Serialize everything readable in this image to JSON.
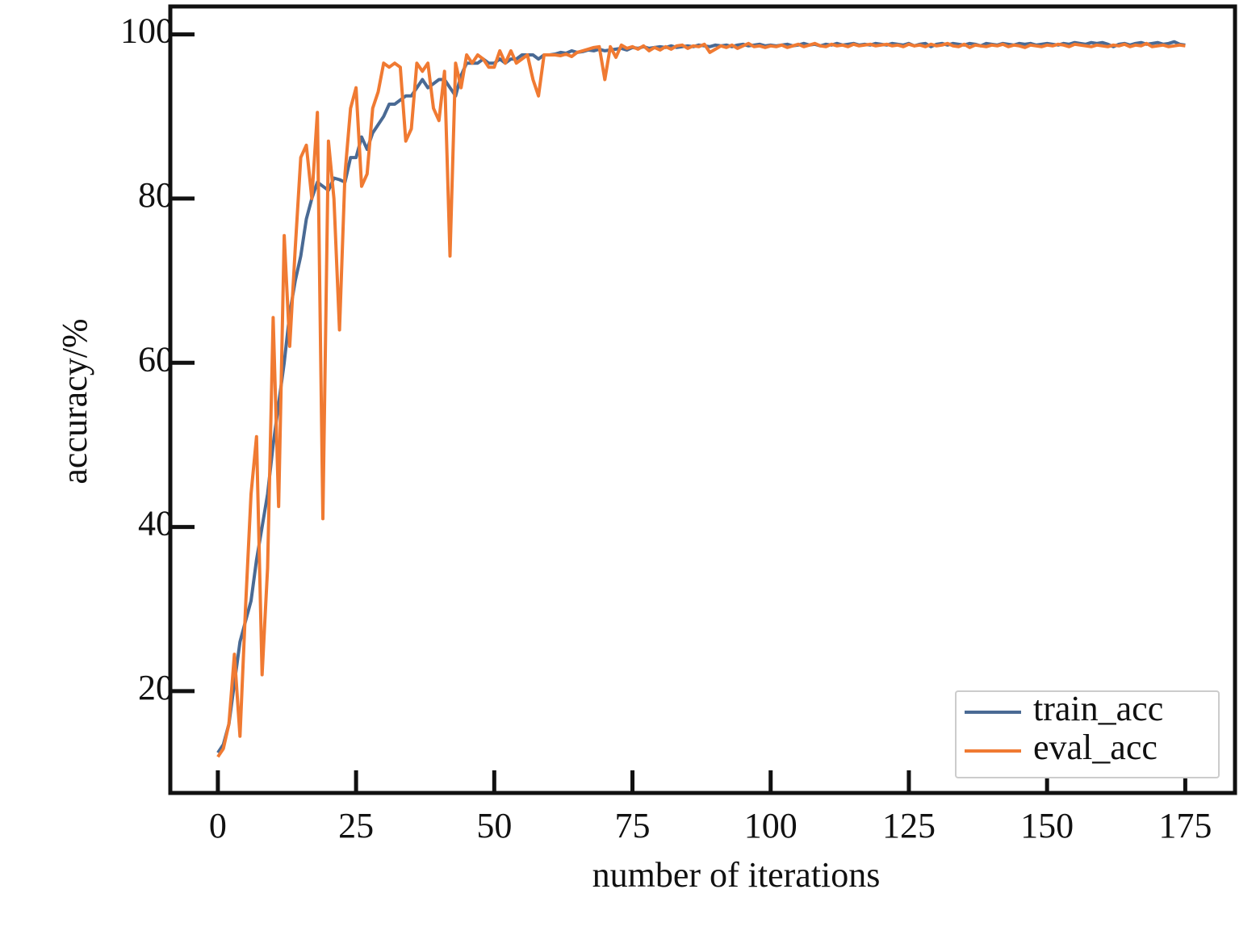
{
  "chart_data": {
    "type": "line",
    "xlabel": "number of iterations",
    "ylabel": "accuracy/%",
    "x": [
      0,
      1,
      2,
      3,
      4,
      5,
      6,
      7,
      8,
      9,
      10,
      11,
      12,
      13,
      14,
      15,
      16,
      17,
      18,
      19,
      20,
      21,
      22,
      23,
      24,
      25,
      26,
      27,
      28,
      29,
      30,
      31,
      32,
      33,
      34,
      35,
      36,
      37,
      38,
      39,
      40,
      41,
      42,
      43,
      44,
      45,
      46,
      47,
      48,
      49,
      50,
      51,
      52,
      53,
      54,
      55,
      56,
      57,
      58,
      59,
      60,
      61,
      62,
      63,
      64,
      65,
      66,
      67,
      68,
      69,
      70,
      71,
      72,
      73,
      74,
      75,
      76,
      77,
      78,
      79,
      80,
      81,
      82,
      83,
      84,
      85,
      86,
      87,
      88,
      89,
      90,
      91,
      92,
      93,
      94,
      95,
      96,
      97,
      98,
      99,
      100,
      101,
      102,
      103,
      104,
      105,
      106,
      107,
      108,
      109,
      110,
      111,
      112,
      113,
      114,
      115,
      116,
      117,
      118,
      119,
      120,
      121,
      122,
      123,
      124,
      125,
      126,
      127,
      128,
      129,
      130,
      131,
      132,
      133,
      134,
      135,
      136,
      137,
      138,
      139,
      140,
      141,
      142,
      143,
      144,
      145,
      146,
      147,
      148,
      149,
      150,
      151,
      152,
      153,
      154,
      155,
      156,
      157,
      158,
      159,
      160,
      161,
      162,
      163,
      164,
      165,
      166,
      167,
      168,
      169,
      170,
      171,
      172,
      173,
      174,
      175
    ],
    "series": [
      {
        "name": "train_acc",
        "color": "#4a6a94",
        "values": [
          12.5,
          13.5,
          16,
          21,
          26,
          28.5,
          31,
          36,
          40,
          44,
          50,
          55,
          60,
          66,
          70,
          73,
          77.5,
          80,
          82,
          81.5,
          81,
          82.5,
          82.3,
          82,
          85,
          85,
          87.5,
          86,
          88,
          89,
          90,
          91.5,
          91.5,
          92,
          92.5,
          92.5,
          93.5,
          94.5,
          93.5,
          94,
          94.5,
          94.5,
          93.5,
          92.5,
          95,
          96.5,
          96.5,
          96.5,
          97,
          96.5,
          96.5,
          97,
          96.5,
          97,
          97,
          97.5,
          97.5,
          97.5,
          97,
          97.5,
          97.5,
          97.6,
          97.8,
          97.7,
          98,
          97.8,
          97.9,
          98.1,
          98,
          98.2,
          98,
          98.1,
          98.2,
          98.3,
          98.1,
          98.4,
          98.3,
          98.5,
          98.3,
          98.4,
          98.5,
          98.4,
          98.6,
          98.4,
          98.5,
          98.6,
          98.5,
          98.7,
          98.6,
          98.5,
          98.7,
          98.6,
          98.7,
          98.5,
          98.7,
          98.8,
          98.6,
          98.7,
          98.8,
          98.6,
          98.7,
          98.6,
          98.7,
          98.8,
          98.6,
          98.7,
          98.9,
          98.7,
          98.8,
          98.6,
          98.8,
          98.7,
          98.9,
          98.7,
          98.8,
          98.9,
          98.7,
          98.8,
          98.7,
          98.9,
          98.8,
          98.7,
          98.9,
          98.8,
          98.7,
          98.9,
          98.6,
          98.8,
          98.9,
          98.5,
          98.8,
          98.9,
          98.7,
          98.9,
          98.8,
          98.7,
          98.9,
          98.8,
          98.6,
          98.9,
          98.8,
          98.7,
          98.9,
          98.8,
          98.7,
          98.9,
          98.8,
          98.9,
          98.7,
          98.8,
          98.9,
          98.8,
          98.7,
          98.9,
          98.8,
          99,
          98.9,
          98.8,
          99,
          98.9,
          99,
          98.8,
          98.5,
          98.8,
          98.9,
          98.7,
          98.9,
          99,
          98.8,
          98.9,
          99,
          98.8,
          98.9,
          99.1,
          98.8,
          98.7
        ]
      },
      {
        "name": "eval_acc",
        "color": "#f07a32",
        "values": [
          12,
          13,
          16,
          24.5,
          14.5,
          30,
          44,
          51,
          22,
          35,
          65.5,
          42.5,
          75.5,
          62,
          74,
          85,
          86.5,
          80,
          90.5,
          41,
          87,
          80,
          64,
          83,
          91,
          93.5,
          81.5,
          83,
          91,
          93,
          96.5,
          96,
          96.5,
          96,
          87,
          88.5,
          96.5,
          95.5,
          96.5,
          91,
          89.5,
          95.5,
          73,
          96.5,
          93.5,
          97.5,
          96.5,
          97.5,
          97,
          96,
          96,
          98,
          96.5,
          98,
          96.5,
          97,
          97.5,
          94.5,
          92.5,
          97.5,
          97.5,
          97.5,
          97.4,
          97.6,
          97.3,
          97.8,
          98,
          98.2,
          98.4,
          98.5,
          94.5,
          98.5,
          97.2,
          98.7,
          98.3,
          98.5,
          98.2,
          98.6,
          98,
          98.4,
          98.1,
          98.5,
          98.2,
          98.6,
          98.7,
          98.3,
          98.6,
          98.5,
          98.8,
          97.8,
          98.2,
          98.6,
          98.4,
          98.7,
          98.3,
          98.6,
          98.9,
          98.5,
          98.6,
          98.4,
          98.6,
          98.5,
          98.7,
          98.4,
          98.6,
          98.8,
          98.5,
          98.7,
          98.9,
          98.6,
          98.5,
          98.8,
          98.6,
          98.7,
          98.5,
          98.8,
          98.6,
          98.7,
          98.8,
          98.6,
          98.7,
          98.8,
          98.6,
          98.7,
          98.5,
          98.8,
          98.6,
          98.7,
          98.5,
          98.8,
          98.6,
          98.7,
          98.9,
          98.6,
          98.5,
          98.8,
          98.4,
          98.7,
          98.6,
          98.5,
          98.7,
          98.6,
          98.8,
          98.5,
          98.7,
          98.6,
          98.4,
          98.7,
          98.6,
          98.5,
          98.7,
          98.6,
          98.8,
          98.7,
          98.5,
          98.8,
          98.7,
          98.6,
          98.5,
          98.7,
          98.6,
          98.5,
          98.7,
          98.6,
          98.8,
          98.5,
          98.7,
          98.6,
          98.9,
          98.5,
          98.6,
          98.7,
          98.5,
          98.6,
          98.7,
          98.6
        ]
      }
    ],
    "xlim": [
      -8.6,
      184
    ],
    "ylim": [
      7.6,
      103.4
    ],
    "xticks": [
      0,
      25,
      50,
      75,
      100,
      125,
      150,
      175
    ],
    "yticks": [
      20,
      40,
      60,
      80,
      100
    ],
    "legend": "lower right",
    "grid": false
  }
}
